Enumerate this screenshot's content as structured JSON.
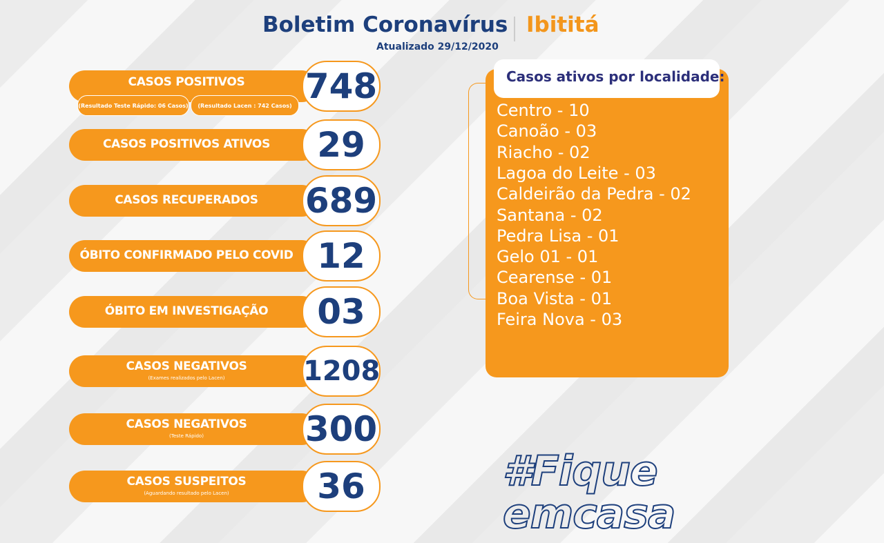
{
  "header": {
    "title": "Boletim Coronavírus",
    "city": "Ibititá",
    "updated": "Atualizado 29/12/2020"
  },
  "stats": [
    {
      "label": "CASOS  POSITIVOS",
      "value": "748",
      "details": [
        "(Resultado Teste Rápido: 06 Casos)",
        "(Resultado Lacen : 742 Casos)"
      ]
    },
    {
      "label": "CASOS POSITIVOS ATIVOS",
      "value": "29"
    },
    {
      "label": "CASOS RECUPERADOS",
      "value": "689"
    },
    {
      "label": "ÓBITO CONFIRMADO PELO COVID",
      "value": "12"
    },
    {
      "label": "ÓBITO EM INVESTIGAÇÃO",
      "value": "03"
    },
    {
      "label": "CASOS NEGATIVOS",
      "note": "(Exames realizados pelo Lacen)",
      "value": "1208"
    },
    {
      "label": "CASOS NEGATIVOS",
      "note": "(Teste Rápido)",
      "value": "300"
    },
    {
      "label": "CASOS SUSPEITOS",
      "note": "(Aguardando resultado pelo Lacen)",
      "value": "36"
    }
  ],
  "localities": {
    "title": "Casos ativos por localidade:",
    "items": [
      "Centro - 10",
      "Canoão - 03",
      "Riacho - 02",
      "Lagoa do Leite - 03",
      "Caldeirão da Pedra - 02",
      "Santana - 02",
      "Pedra Lisa - 01",
      "Gelo 01 - 01",
      "Cearense - 01",
      "Boa Vista - 01",
      "Feira Nova - 03"
    ]
  },
  "hashtag": [
    "#Fique",
    "emcasa"
  ]
}
